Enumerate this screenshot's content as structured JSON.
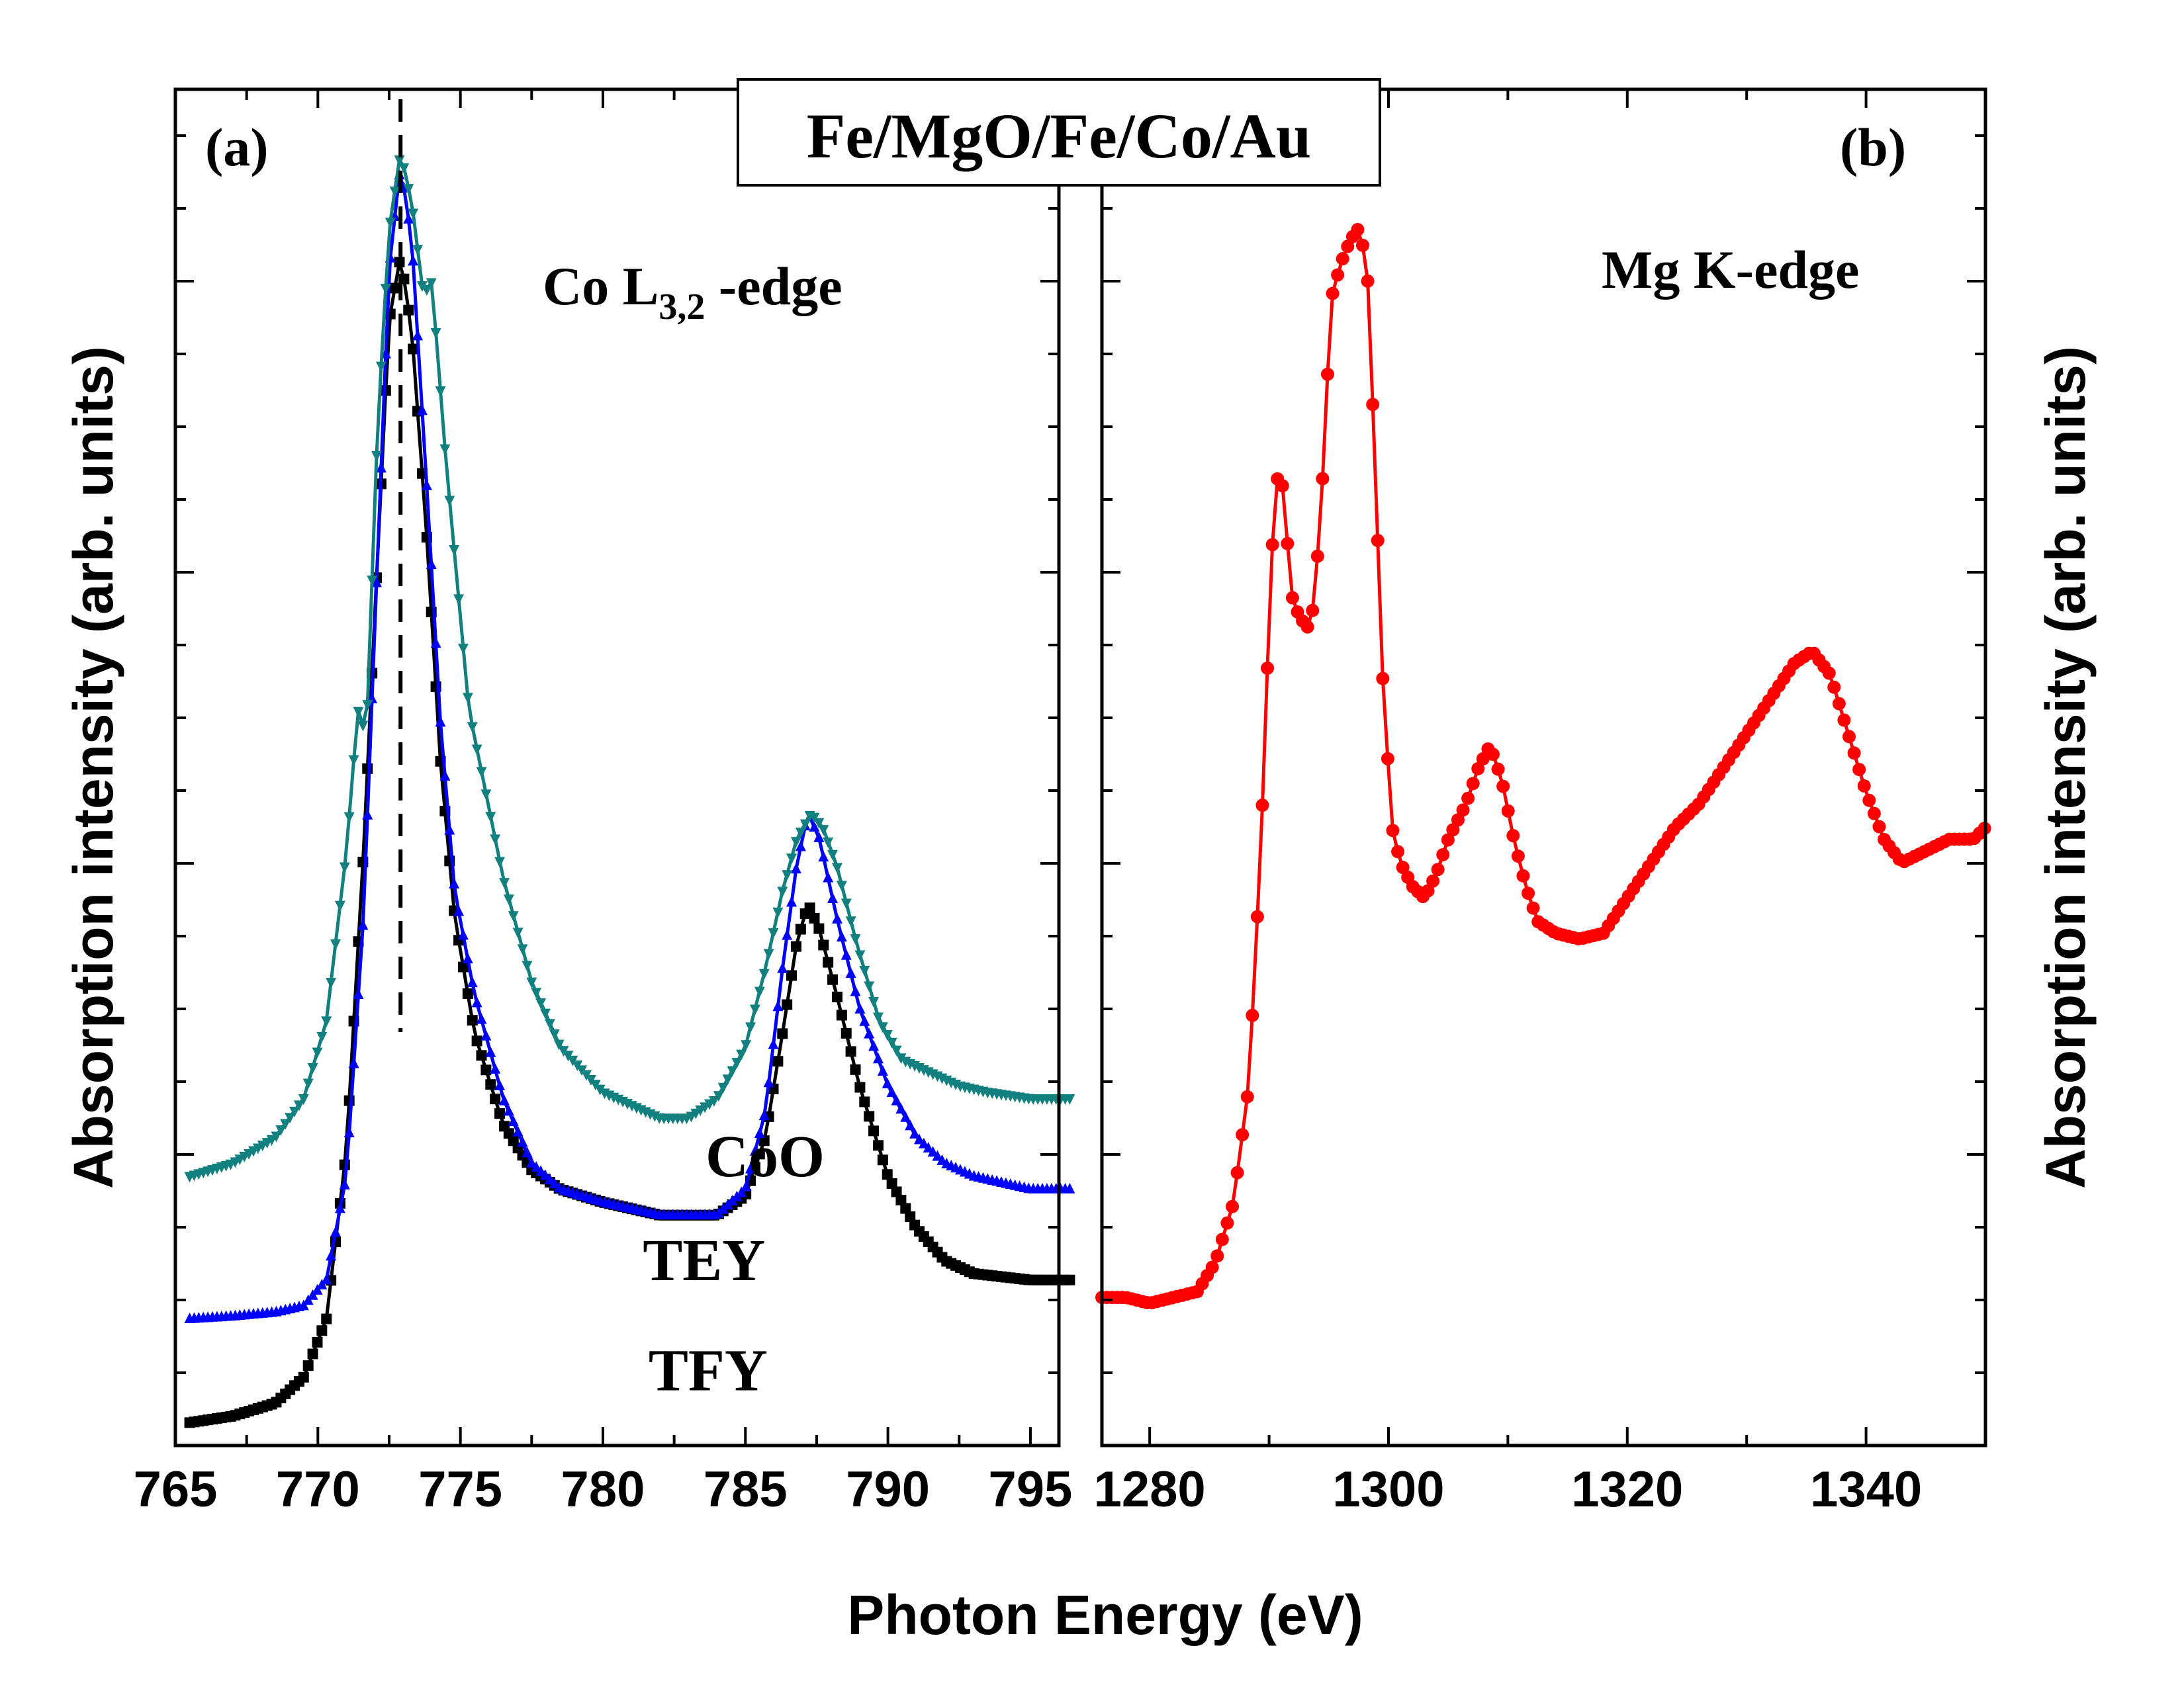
{
  "chart_data": [
    {
      "id": "a",
      "type": "line",
      "panel_label": "(a)",
      "annotation": {
        "main": "Co L",
        "sub": "3,2",
        "rest": " -edge"
      },
      "xlabel": "Photon Energy (eV)",
      "ylabel": "Absorption intensity (arb. units)",
      "xlim": [
        765,
        796
      ],
      "ylim": [
        0,
        1
      ],
      "xticks": [
        "765",
        "770",
        "775",
        "780",
        "785",
        "790",
        "795"
      ],
      "grid": false,
      "reference_line_x": 772.9,
      "series": [
        {
          "name": "TFY",
          "color": "#000000",
          "marker": "square",
          "x": [
            765.5,
            767,
            768.5,
            769.5,
            770.3,
            771,
            771.6,
            772.1,
            772.5,
            772.9,
            773.3,
            773.8,
            774.3,
            774.8,
            775.5,
            776.5,
            777.5,
            778.5,
            780,
            782,
            784,
            785,
            785.7,
            786.3,
            786.8,
            787.2,
            787.6,
            788.2,
            789,
            790,
            791,
            792,
            793,
            795,
            796.5
          ],
          "y": [
            0.01,
            0.015,
            0.025,
            0.045,
            0.09,
            0.22,
            0.45,
            0.68,
            0.86,
            0.91,
            0.85,
            0.7,
            0.52,
            0.4,
            0.31,
            0.24,
            0.205,
            0.19,
            0.18,
            0.17,
            0.17,
            0.185,
            0.23,
            0.31,
            0.38,
            0.41,
            0.39,
            0.34,
            0.27,
            0.2,
            0.16,
            0.135,
            0.125,
            0.12,
            0.12
          ]
        },
        {
          "name": "TEY",
          "color": "#0000ff",
          "marker": "triangle-up",
          "x": [
            765.5,
            767,
            768.5,
            769.5,
            770.3,
            771,
            771.6,
            772.1,
            772.5,
            772.9,
            773.3,
            773.8,
            774.3,
            774.8,
            775.5,
            776.5,
            777.5,
            778.5,
            780,
            782,
            784,
            785,
            785.7,
            786.3,
            786.8,
            787.2,
            787.6,
            788.2,
            789,
            790,
            791,
            792,
            793,
            795,
            796.5
          ],
          "y": [
            0.09,
            0.092,
            0.095,
            0.1,
            0.12,
            0.2,
            0.4,
            0.68,
            0.9,
            0.98,
            0.92,
            0.74,
            0.55,
            0.42,
            0.34,
            0.26,
            0.21,
            0.19,
            0.18,
            0.17,
            0.17,
            0.19,
            0.25,
            0.36,
            0.44,
            0.48,
            0.46,
            0.4,
            0.33,
            0.27,
            0.23,
            0.21,
            0.2,
            0.19,
            0.19
          ]
        },
        {
          "name": "CoO",
          "color": "#138080",
          "marker": "triangle-down",
          "x": [
            765.5,
            767,
            768.5,
            769.5,
            770.3,
            771,
            771.4,
            771.7,
            772.1,
            772.5,
            772.9,
            773.3,
            773.7,
            774,
            774.5,
            775.3,
            776.5,
            777.5,
            778.5,
            780,
            781,
            782,
            783,
            784,
            785,
            785.7,
            786.3,
            786.8,
            787.3,
            787.7,
            788.2,
            788.9,
            789.7,
            790.5,
            791.5,
            792.5,
            793.5,
            795,
            796.5
          ],
          "y": [
            0.2,
            0.21,
            0.23,
            0.26,
            0.32,
            0.45,
            0.56,
            0.54,
            0.78,
            0.93,
            0.99,
            0.95,
            0.88,
            0.89,
            0.75,
            0.56,
            0.43,
            0.35,
            0.3,
            0.265,
            0.255,
            0.245,
            0.245,
            0.26,
            0.3,
            0.36,
            0.42,
            0.46,
            0.48,
            0.47,
            0.44,
            0.38,
            0.32,
            0.29,
            0.28,
            0.27,
            0.265,
            0.26,
            0.26
          ]
        }
      ],
      "series_labels": [
        {
          "name": "CoO",
          "x": 783.6,
          "y": 0.2
        },
        {
          "name": "TEY",
          "x": 781.4,
          "y": 0.12
        },
        {
          "name": "TFY",
          "x": 781.6,
          "y": 0.035
        }
      ]
    },
    {
      "id": "b",
      "type": "line",
      "panel_label": "(b)",
      "annotation": {
        "main": "Mg K-edge",
        "sub": "",
        "rest": ""
      },
      "xlabel": "Photon Energy (eV)",
      "ylabel": "Absorption intensity (arb. units)",
      "xlim": [
        1276,
        1350
      ],
      "ylim": [
        0,
        1
      ],
      "xticks": [
        "1280",
        "1300",
        "1320",
        "1340"
      ],
      "grid": false,
      "series": [
        {
          "name": "Mg K-edge",
          "color": "#ff0000",
          "marker": "circle",
          "x": [
            1276,
            1278,
            1280,
            1282,
            1284,
            1285.5,
            1287,
            1288.3,
            1289.3,
            1290.2,
            1290.8,
            1291.3,
            1291.8,
            1292.5,
            1293.2,
            1293.8,
            1294.5,
            1295.2,
            1296,
            1296.8,
            1297.5,
            1298.2,
            1298.8,
            1299.5,
            1300.3,
            1301,
            1302,
            1303,
            1304,
            1305,
            1306.5,
            1307.5,
            1308.5,
            1309.5,
            1310.5,
            1311.5,
            1312.5,
            1314,
            1316,
            1318,
            1320,
            1322,
            1324,
            1326,
            1328,
            1330,
            1332,
            1334,
            1335.5,
            1337,
            1338.5,
            1340,
            1341.5,
            1343,
            1345,
            1347,
            1349,
            1350
          ],
          "y": [
            0.12,
            0.12,
            0.115,
            0.12,
            0.125,
            0.15,
            0.2,
            0.3,
            0.5,
            0.75,
            0.83,
            0.8,
            0.72,
            0.7,
            0.69,
            0.71,
            0.82,
            0.97,
            1.0,
            1.02,
            1.03,
            1.0,
            0.85,
            0.65,
            0.52,
            0.49,
            0.47,
            0.46,
            0.48,
            0.51,
            0.54,
            0.57,
            0.59,
            0.56,
            0.51,
            0.47,
            0.44,
            0.43,
            0.425,
            0.43,
            0.46,
            0.49,
            0.52,
            0.54,
            0.57,
            0.6,
            0.63,
            0.66,
            0.67,
            0.65,
            0.6,
            0.55,
            0.51,
            0.49,
            0.5,
            0.51,
            0.51,
            0.52
          ]
        }
      ]
    }
  ],
  "title_box": "Fe/MgO/Fe/Co/Au"
}
